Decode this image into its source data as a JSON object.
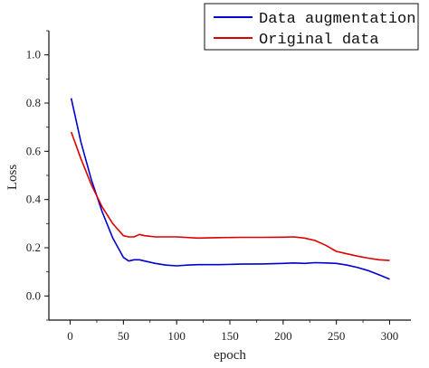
{
  "chart_data": {
    "type": "line",
    "xlabel": "epoch",
    "ylabel": "Loss",
    "xlim": [
      -20,
      320
    ],
    "ylim": [
      -0.1,
      1.1
    ],
    "xticks": [
      0,
      50,
      100,
      150,
      200,
      250,
      300
    ],
    "yticks": [
      0.0,
      0.2,
      0.4,
      0.6,
      0.8,
      1.0
    ],
    "xtick_labels": [
      "0",
      "50",
      "100",
      "150",
      "200",
      "250",
      "300"
    ],
    "ytick_labels": [
      "0.0",
      "0.2",
      "0.4",
      "0.6",
      "0.8",
      "1.0"
    ],
    "legend_position": "top-right",
    "grid": false,
    "series": [
      {
        "name": "Data augmentation",
        "color": "#0000cc",
        "x": [
          1,
          10,
          20,
          30,
          40,
          50,
          55,
          60,
          65,
          70,
          80,
          90,
          100,
          110,
          120,
          140,
          160,
          180,
          200,
          210,
          220,
          230,
          240,
          250,
          260,
          270,
          280,
          290,
          300
        ],
        "y": [
          0.82,
          0.64,
          0.48,
          0.35,
          0.24,
          0.16,
          0.145,
          0.15,
          0.15,
          0.145,
          0.135,
          0.128,
          0.125,
          0.128,
          0.13,
          0.13,
          0.132,
          0.133,
          0.135,
          0.137,
          0.135,
          0.138,
          0.137,
          0.135,
          0.128,
          0.118,
          0.105,
          0.088,
          0.07
        ]
      },
      {
        "name": "Original data",
        "color": "#dd0000",
        "x": [
          1,
          10,
          20,
          30,
          40,
          50,
          55,
          60,
          65,
          70,
          80,
          100,
          120,
          140,
          160,
          180,
          200,
          210,
          220,
          230,
          240,
          250,
          260,
          270,
          280,
          290,
          300
        ],
        "y": [
          0.68,
          0.57,
          0.46,
          0.37,
          0.3,
          0.25,
          0.245,
          0.245,
          0.255,
          0.25,
          0.245,
          0.245,
          0.24,
          0.242,
          0.243,
          0.243,
          0.244,
          0.245,
          0.24,
          0.23,
          0.21,
          0.185,
          0.175,
          0.165,
          0.157,
          0.15,
          0.147
        ]
      }
    ]
  }
}
